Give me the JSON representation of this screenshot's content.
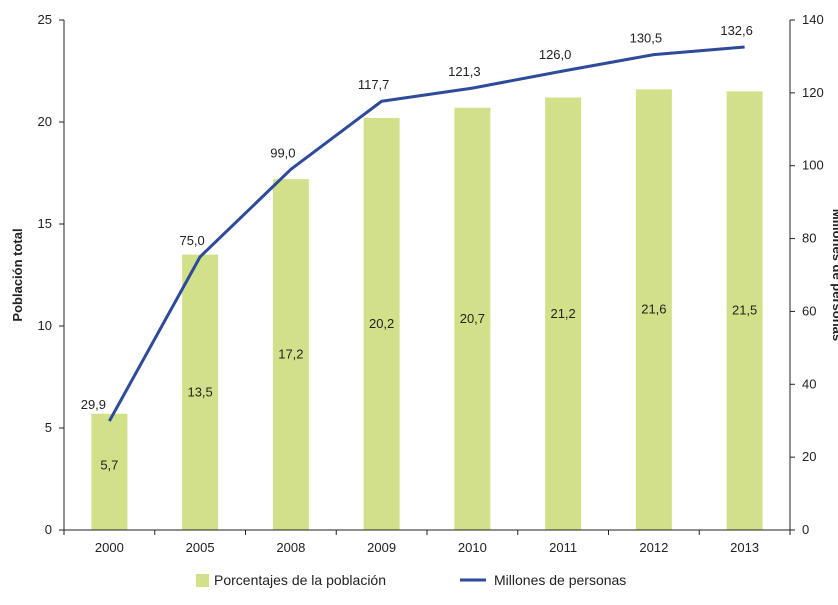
{
  "chart_data": {
    "type": "bar",
    "categories": [
      "2000",
      "2005",
      "2008",
      "2009",
      "2010",
      "2011",
      "2012",
      "2013"
    ],
    "series": [
      {
        "name": "Porcentajes de la población",
        "type": "bar",
        "axis": "left",
        "values": [
          5.7,
          13.5,
          17.2,
          20.2,
          20.7,
          21.2,
          21.6,
          21.5
        ],
        "labels": [
          "5,7",
          "13,5",
          "17,2",
          "20,2",
          "20,7",
          "21,2",
          "21,6",
          "21,5"
        ],
        "color": "#d3e08a"
      },
      {
        "name": "Millones de personas",
        "type": "line",
        "axis": "right",
        "values": [
          29.9,
          75.0,
          99.0,
          117.7,
          121.3,
          126.0,
          130.5,
          132.6
        ],
        "labels": [
          "29,9",
          "75,0",
          "99,0",
          "117,7",
          "121,3",
          "126,0",
          "130,5",
          "132,6"
        ],
        "color": "#2e4a9b"
      }
    ],
    "ylabel": "Población total",
    "y2label": "Millones de personas",
    "ylim": [
      0,
      25
    ],
    "y2lim": [
      0,
      140
    ],
    "yticks": [
      "0",
      "5",
      "10",
      "15",
      "20",
      "25"
    ],
    "y2ticks": [
      "0",
      "20",
      "40",
      "60",
      "80",
      "100",
      "120",
      "140"
    ],
    "grid": false,
    "legend_position": "bottom"
  }
}
